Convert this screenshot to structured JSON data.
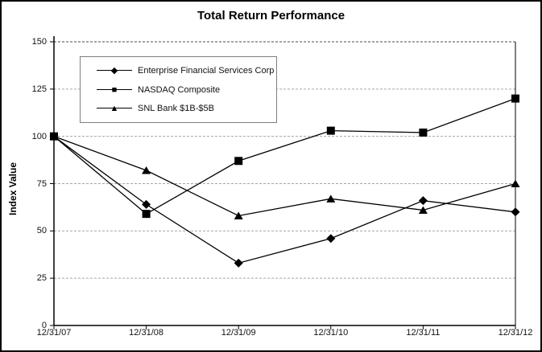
{
  "chart_data": {
    "type": "line",
    "title": "Total Return Performance",
    "xlabel": "",
    "ylabel": "Index Value",
    "categories": [
      "12/31/07",
      "12/31/08",
      "12/31/09",
      "12/31/10",
      "12/31/11",
      "12/31/12"
    ],
    "yticks": [
      150,
      125,
      100,
      75,
      50,
      25,
      0
    ],
    "ylim": [
      0,
      150
    ],
    "grid": "horizontal-dashed",
    "legend_position": "upper-left-inside",
    "line_color": "#000000",
    "gridline_color": "#a6a6a6",
    "top_gridline_color": "#4d4d4d",
    "series": [
      {
        "name": "Enterprise Financial Services Corp",
        "marker": "diamond",
        "color": "#000000",
        "values": [
          100,
          64,
          33,
          46,
          66,
          60
        ]
      },
      {
        "name": "NASDAQ Composite",
        "marker": "square",
        "color": "#000000",
        "values": [
          100,
          59,
          87,
          103,
          102,
          120
        ]
      },
      {
        "name": "SNL Bank $1B-$5B",
        "marker": "triangle",
        "color": "#000000",
        "values": [
          100,
          82,
          58,
          67,
          61,
          75
        ]
      }
    ]
  }
}
